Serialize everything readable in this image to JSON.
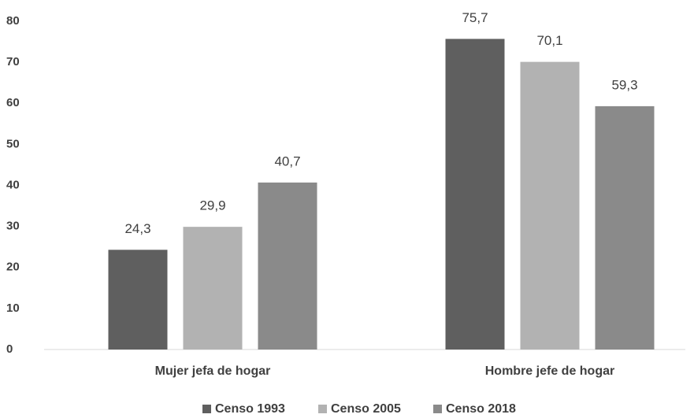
{
  "chart_data": {
    "type": "bar",
    "categories": [
      "Mujer jefa de hogar",
      "Hombre jefe de hogar"
    ],
    "series": [
      {
        "name": "Censo 1993",
        "color": "#5f5f5f",
        "values": [
          24.3,
          75.7
        ],
        "value_labels": [
          "24,3",
          "75,7"
        ]
      },
      {
        "name": "Censo 2005",
        "color": "#b2b2b2",
        "values": [
          29.9,
          70.1
        ],
        "value_labels": [
          "29,9",
          "70,1"
        ]
      },
      {
        "name": "Censo 2018",
        "color": "#8a8a8a",
        "values": [
          40.7,
          59.3
        ],
        "value_labels": [
          "40,7",
          "59,3"
        ]
      }
    ],
    "ylim": [
      0,
      80
    ],
    "yticks": [
      0,
      10,
      20,
      30,
      40,
      50,
      60,
      70,
      80
    ],
    "grid": false,
    "legend": "bottom"
  }
}
